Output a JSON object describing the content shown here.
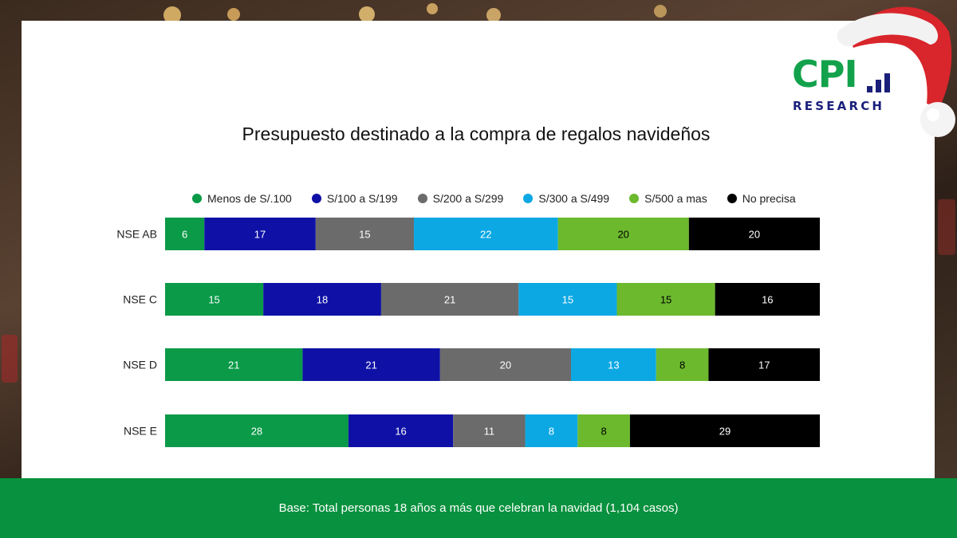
{
  "colors": {
    "footer": "#08913e",
    "series": [
      "#0a9a48",
      "#0f11a6",
      "#6b6b6b",
      "#0ca8e4",
      "#6cb92e",
      "#000000"
    ]
  },
  "logo": {
    "main_text": "CPI",
    "sub_text": "RESEARCH"
  },
  "footer": {
    "text": "Base: Total personas 18 años a más que celebran la navidad (1,104 casos)"
  },
  "chart_data": {
    "type": "bar",
    "orientation": "horizontal",
    "stacked": true,
    "title": "Presupuesto destinado a la compra de regalos navideños",
    "xlabel": "",
    "ylabel": "",
    "xlim": [
      0,
      100
    ],
    "legend_position": "top",
    "categories": [
      "NSE AB",
      "NSE C",
      "NSE D",
      "NSE E"
    ],
    "series": [
      {
        "name": "Menos de S/.100",
        "color": "#0a9a48",
        "label_color": "#ffffff",
        "values": [
          6,
          15,
          21,
          28
        ]
      },
      {
        "name": "S/100 a S/199",
        "color": "#0f11a6",
        "label_color": "#ffffff",
        "values": [
          17,
          18,
          21,
          16
        ]
      },
      {
        "name": "S/200 a S/299",
        "color": "#6b6b6b",
        "label_color": "#ffffff",
        "values": [
          15,
          21,
          20,
          11
        ]
      },
      {
        "name": "S/300 a S/499",
        "color": "#0ca8e4",
        "label_color": "#ffffff",
        "values": [
          22,
          15,
          13,
          8
        ]
      },
      {
        "name": "S/500 a mas",
        "color": "#6cb92e",
        "label_color": "#000000",
        "values": [
          20,
          15,
          8,
          8
        ]
      },
      {
        "name": "No precisa",
        "color": "#000000",
        "label_color": "#ffffff",
        "values": [
          20,
          16,
          17,
          29
        ]
      }
    ]
  }
}
